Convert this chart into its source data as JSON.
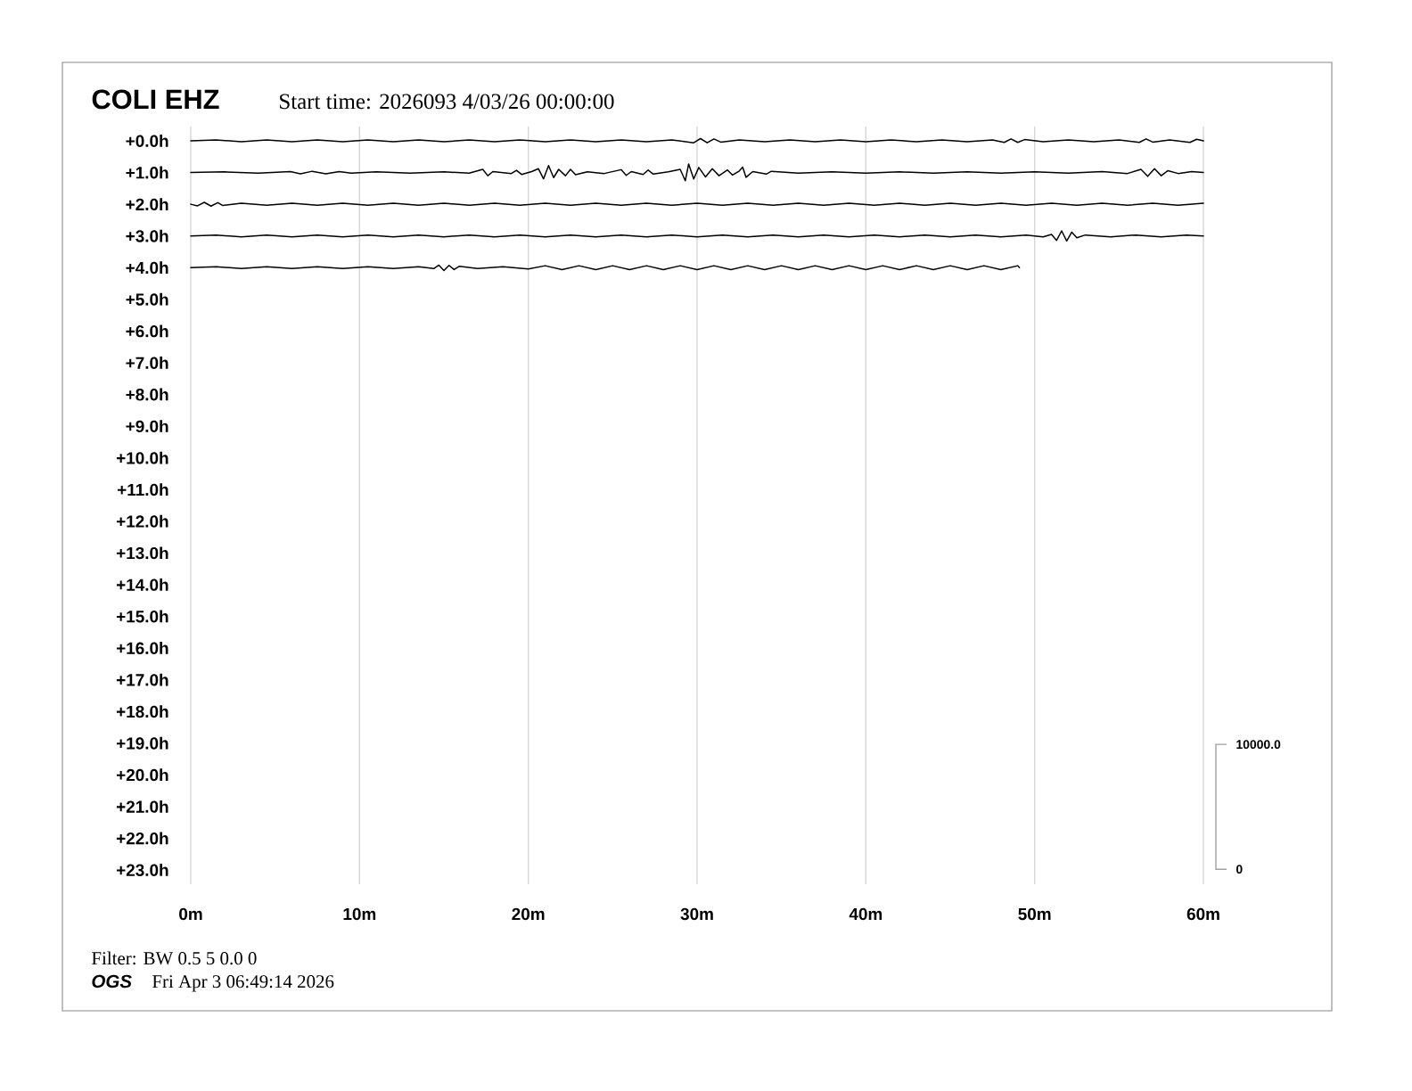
{
  "chart_data": {
    "type": "line",
    "title": "COLI EHZ",
    "subtitle": "Start time: 2026093  4/03/26 00:00:00",
    "annotations": [
      "Filter: BW 0.5 5 0.0 0",
      "OGS",
      "Fri Apr  3 06:49:14 2026"
    ],
    "xlim": [
      0,
      60
    ],
    "xticks": [
      {
        "value": 0,
        "label": "0m"
      },
      {
        "value": 10,
        "label": "10m"
      },
      {
        "value": 20,
        "label": "20m"
      },
      {
        "value": 30,
        "label": "30m"
      },
      {
        "value": 40,
        "label": "40m"
      },
      {
        "value": 50,
        "label": "50m"
      },
      {
        "value": 60,
        "label": "60m"
      }
    ],
    "ylim": [
      23.45,
      -0.45
    ],
    "yticks": [
      {
        "value": 0,
        "label": "+0.0h"
      },
      {
        "value": 1,
        "label": "+1.0h"
      },
      {
        "value": 2,
        "label": "+2.0h"
      },
      {
        "value": 3,
        "label": "+3.0h"
      },
      {
        "value": 4,
        "label": "+4.0h"
      },
      {
        "value": 5,
        "label": "+5.0h"
      },
      {
        "value": 6,
        "label": "+6.0h"
      },
      {
        "value": 7,
        "label": "+7.0h"
      },
      {
        "value": 8,
        "label": "+8.0h"
      },
      {
        "value": 9,
        "label": "+9.0h"
      },
      {
        "value": 10,
        "label": "+10.0h"
      },
      {
        "value": 11,
        "label": "+11.0h"
      },
      {
        "value": 12,
        "label": "+12.0h"
      },
      {
        "value": 13,
        "label": "+13.0h"
      },
      {
        "value": 14,
        "label": "+14.0h"
      },
      {
        "value": 15,
        "label": "+15.0h"
      },
      {
        "value": 16,
        "label": "+16.0h"
      },
      {
        "value": 17,
        "label": "+17.0h"
      },
      {
        "value": 18,
        "label": "+18.0h"
      },
      {
        "value": 19,
        "label": "+19.0h"
      },
      {
        "value": 20,
        "label": "+20.0h"
      },
      {
        "value": 21,
        "label": "+21.0h"
      },
      {
        "value": 22,
        "label": "+22.0h"
      },
      {
        "value": 23,
        "label": "+23.0h"
      }
    ],
    "y2lim": [
      -1200,
      59500
    ],
    "y2ticks": [
      {
        "value": 0,
        "label": "0"
      },
      {
        "value": 10000,
        "label": "10000.0"
      }
    ],
    "grid": "x",
    "series": [
      {
        "color": "#000000",
        "x": [
          0,
          1.5,
          3,
          4.5,
          6,
          7.5,
          9,
          10.5,
          12,
          13.5,
          15,
          16.5,
          18,
          19.5,
          21,
          22.5,
          24,
          25.5,
          27,
          28.5,
          29.8,
          30.2,
          30.6,
          31,
          31.4,
          32.5,
          34,
          35.5,
          37,
          38.5,
          40,
          41.5,
          43,
          44.5,
          46,
          47.5,
          48.2,
          48.6,
          49,
          49.4,
          50.5,
          52,
          53.5,
          55,
          56.2,
          56.6,
          57,
          58,
          59.2,
          59.6,
          60
        ],
        "values": [
          0.0,
          -0.03,
          0.03,
          -0.03,
          0.03,
          -0.03,
          0.03,
          -0.03,
          0.03,
          -0.03,
          0.03,
          -0.03,
          0.03,
          -0.03,
          0.03,
          -0.03,
          0.03,
          -0.03,
          0.03,
          -0.03,
          0.06,
          -0.07,
          0.06,
          -0.06,
          0.04,
          -0.03,
          0.03,
          -0.03,
          0.03,
          -0.03,
          0.03,
          -0.03,
          0.03,
          -0.03,
          0.03,
          -0.03,
          0.05,
          -0.06,
          0.05,
          -0.04,
          0.03,
          -0.03,
          0.03,
          -0.03,
          0.05,
          -0.06,
          0.04,
          -0.03,
          0.05,
          -0.05,
          0.0
        ]
      },
      {
        "color": "#000000",
        "x": [
          0,
          2,
          4,
          5.9,
          6.5,
          7.2,
          8,
          8.8,
          9.5,
          11,
          13,
          15,
          16.5,
          17.3,
          17.6,
          17.9,
          19,
          19.3,
          19.6,
          20.2,
          20.6,
          20.9,
          21.2,
          21.5,
          21.8,
          22.2,
          22.5,
          22.8,
          23.5,
          24.5,
          25.5,
          25.8,
          26.1,
          26.8,
          27.1,
          27.4,
          28.3,
          29.0,
          29.3,
          29.5,
          29.8,
          30.1,
          30.5,
          30.9,
          31.3,
          31.8,
          32.1,
          32.5,
          32.7,
          32.9,
          33.3,
          34.1,
          34.4,
          36,
          38,
          40,
          42,
          44,
          46,
          48,
          50,
          52,
          54,
          55.5,
          56.3,
          56.7,
          57.1,
          57.5,
          57.9,
          58.5,
          59.3,
          60
        ],
        "values": [
          1.0,
          0.98,
          1.02,
          0.97,
          1.04,
          0.96,
          1.04,
          0.97,
          1.02,
          0.98,
          1.02,
          0.98,
          1.02,
          0.9,
          1.1,
          0.97,
          1.03,
          0.93,
          1.06,
          0.97,
          0.88,
          1.2,
          0.78,
          1.16,
          0.9,
          1.1,
          0.9,
          1.07,
          0.98,
          1.03,
          0.91,
          1.09,
          0.97,
          1.06,
          0.92,
          1.05,
          0.98,
          0.9,
          1.26,
          0.73,
          1.2,
          0.84,
          1.14,
          0.88,
          1.1,
          0.92,
          1.08,
          0.95,
          0.83,
          1.15,
          0.97,
          1.05,
          0.96,
          1.02,
          0.98,
          1.02,
          0.98,
          1.02,
          0.98,
          1.02,
          0.98,
          1.02,
          0.97,
          1.03,
          0.9,
          1.12,
          0.88,
          1.1,
          0.94,
          1.03,
          0.97,
          1.0
        ]
      },
      {
        "color": "#000000",
        "x": [
          0,
          0.4,
          0.8,
          1.2,
          1.6,
          1.9,
          3,
          4.5,
          6,
          7.5,
          9,
          10.5,
          12,
          13.5,
          15,
          16.5,
          18,
          19.5,
          21,
          22.5,
          24,
          25.5,
          27,
          28.5,
          30,
          31.5,
          33,
          34.5,
          36,
          37.5,
          39,
          40.5,
          42,
          43.5,
          45,
          46.5,
          48,
          49.5,
          51,
          52.5,
          54,
          55.5,
          57,
          58.5,
          60
        ],
        "values": [
          2.0,
          2.05,
          1.94,
          2.06,
          1.95,
          2.04,
          1.97,
          2.03,
          1.97,
          2.03,
          1.97,
          2.03,
          1.97,
          2.03,
          1.97,
          2.03,
          1.97,
          2.03,
          1.97,
          2.03,
          1.97,
          2.03,
          1.97,
          2.03,
          1.97,
          2.03,
          1.97,
          2.03,
          1.97,
          2.03,
          1.97,
          2.03,
          1.97,
          2.03,
          1.97,
          2.03,
          1.97,
          2.03,
          1.97,
          2.03,
          1.97,
          2.03,
          1.97,
          2.03,
          1.97
        ]
      },
      {
        "color": "#000000",
        "x": [
          0,
          1.5,
          3,
          4.5,
          6,
          7.5,
          9,
          10.5,
          12,
          13.5,
          15,
          16.5,
          18,
          19.5,
          21,
          22.5,
          24,
          25.5,
          27,
          28.5,
          30,
          31.5,
          33,
          34.5,
          36,
          37.5,
          39,
          40.5,
          42,
          43.5,
          45,
          46.5,
          48,
          49.5,
          50.5,
          51.0,
          51.3,
          51.6,
          51.9,
          52.2,
          52.5,
          53,
          54.5,
          56,
          57.5,
          59,
          60
        ],
        "values": [
          3.0,
          2.97,
          3.03,
          2.97,
          3.03,
          2.97,
          3.03,
          2.97,
          3.03,
          2.97,
          3.03,
          2.97,
          3.03,
          2.97,
          3.03,
          2.97,
          3.03,
          2.97,
          3.03,
          2.97,
          3.03,
          2.97,
          3.03,
          2.97,
          3.03,
          2.97,
          3.03,
          2.97,
          3.03,
          2.97,
          3.03,
          2.97,
          3.03,
          2.97,
          3.03,
          2.95,
          3.14,
          2.84,
          3.16,
          2.88,
          3.06,
          2.97,
          3.03,
          2.97,
          3.03,
          2.97,
          3.0
        ]
      },
      {
        "color": "#000000",
        "x": [
          0,
          1.5,
          3,
          4.5,
          6,
          7.5,
          9,
          10.5,
          12,
          13.5,
          14.4,
          14.7,
          15.0,
          15.3,
          15.6,
          15.9,
          17,
          18.5,
          20,
          21,
          22,
          23,
          24,
          25,
          26,
          27,
          28,
          29,
          30,
          31,
          32,
          33,
          34,
          35,
          36,
          37,
          38,
          39,
          40,
          41,
          42,
          43,
          44,
          45,
          46,
          47,
          48,
          49,
          49.1
        ],
        "values": [
          4.0,
          3.97,
          4.03,
          3.97,
          4.03,
          3.97,
          4.03,
          3.97,
          4.03,
          3.97,
          4.03,
          3.92,
          4.09,
          3.93,
          4.06,
          3.96,
          4.03,
          3.97,
          4.04,
          3.94,
          4.06,
          3.94,
          4.06,
          3.94,
          4.06,
          3.94,
          4.06,
          3.94,
          4.06,
          3.94,
          4.06,
          3.94,
          4.06,
          3.94,
          4.06,
          3.94,
          4.06,
          3.94,
          4.06,
          3.94,
          4.06,
          3.94,
          4.06,
          3.94,
          4.06,
          3.94,
          4.06,
          3.94,
          4.0
        ]
      }
    ]
  }
}
